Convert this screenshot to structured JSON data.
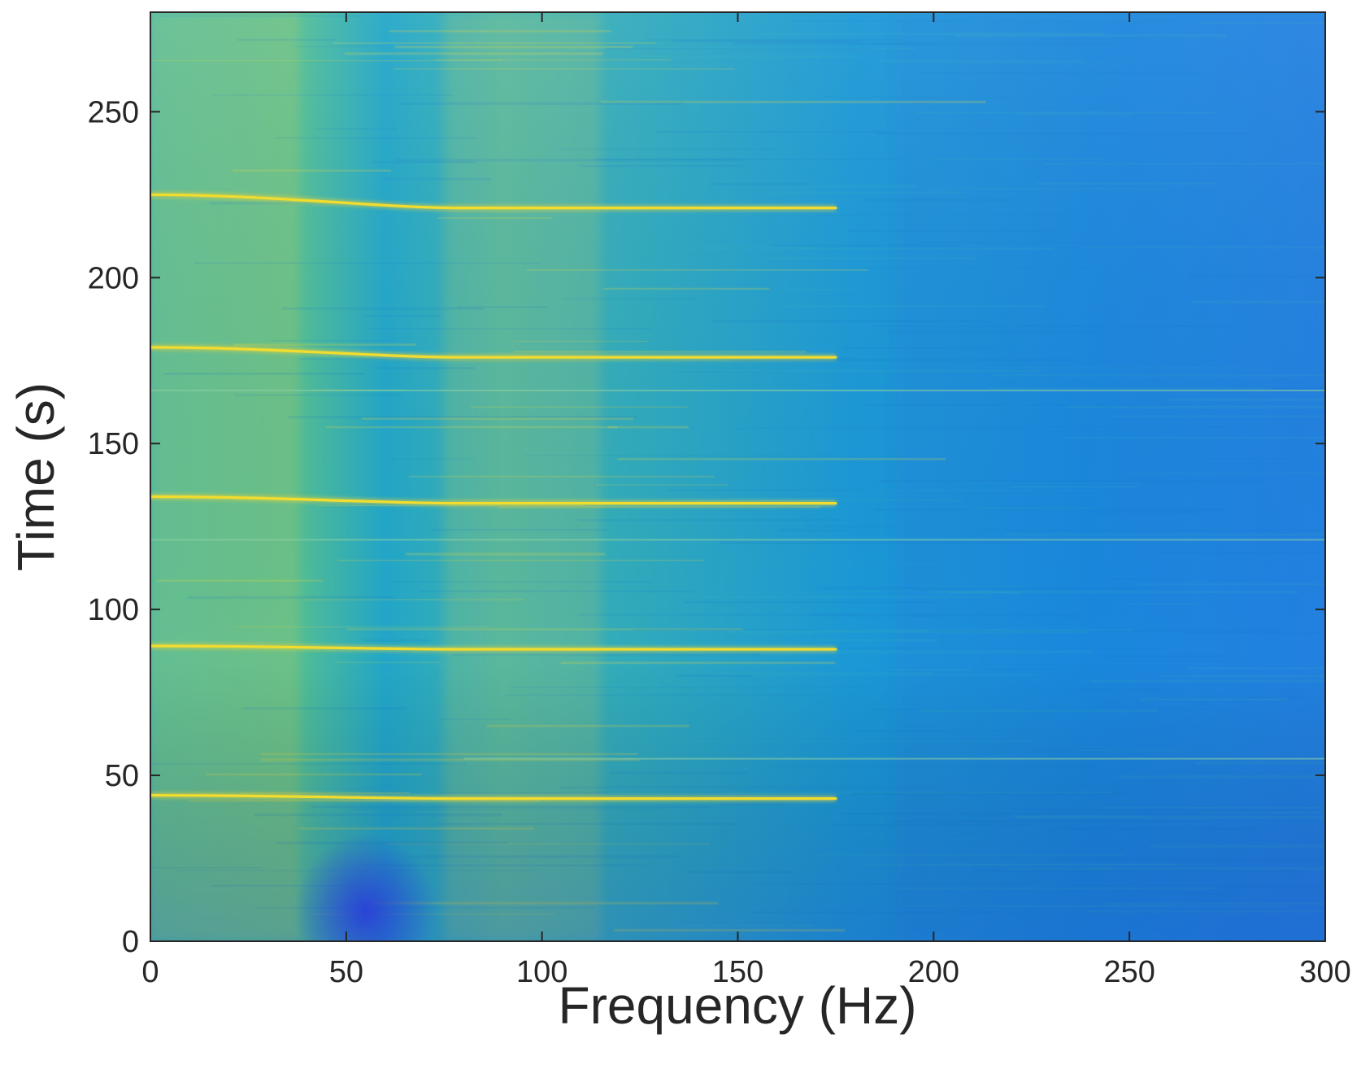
{
  "chart_data": {
    "type": "heatmap",
    "title": "",
    "xlabel": "Frequency (Hz)",
    "ylabel": "Time (s)",
    "xlim": [
      0,
      300
    ],
    "ylim": [
      0,
      280
    ],
    "xticks": [
      0,
      50,
      100,
      150,
      200,
      250,
      300
    ],
    "yticks": [
      0,
      50,
      100,
      150,
      200,
      250
    ],
    "colormap": {
      "low": "#2f4fe0",
      "mid": "#1aa0d8",
      "high": "#e6d43a"
    },
    "background_bands": [
      {
        "x_start": 0,
        "x_end": 38,
        "intensity": 0.55
      },
      {
        "x_start": 75,
        "x_end": 115,
        "intensity": 0.45
      },
      {
        "x_start": 190,
        "x_end": 300,
        "intensity": 0.25
      }
    ],
    "low_energy_region": {
      "x_start": 45,
      "x_end": 65,
      "t_start": 0,
      "t_end": 18
    },
    "ridges": [
      {
        "t_start": 44,
        "t_end": 43,
        "x_end": 175,
        "faint_x": [
          190,
          205
        ]
      },
      {
        "t_start": 89,
        "t_end": 88,
        "x_end": 175,
        "faint_x": [
          190,
          205
        ]
      },
      {
        "t_start": 134,
        "t_end": 132,
        "x_end": 175,
        "faint_x": [
          190,
          205
        ]
      },
      {
        "t_start": 179,
        "t_end": 176,
        "x_end": 175,
        "faint_x": [
          190,
          205
        ]
      },
      {
        "t_start": 225,
        "t_end": 221,
        "x_end": 175,
        "faint_x": [
          190,
          205
        ]
      }
    ],
    "faint_lines": [
      {
        "t": 55,
        "x_start": 80,
        "x_end": 300
      },
      {
        "t": 121,
        "x_start": 0,
        "x_end": 300
      },
      {
        "t": 166,
        "x_start": 0,
        "x_end": 300
      }
    ],
    "grid": false,
    "legend": "none"
  }
}
